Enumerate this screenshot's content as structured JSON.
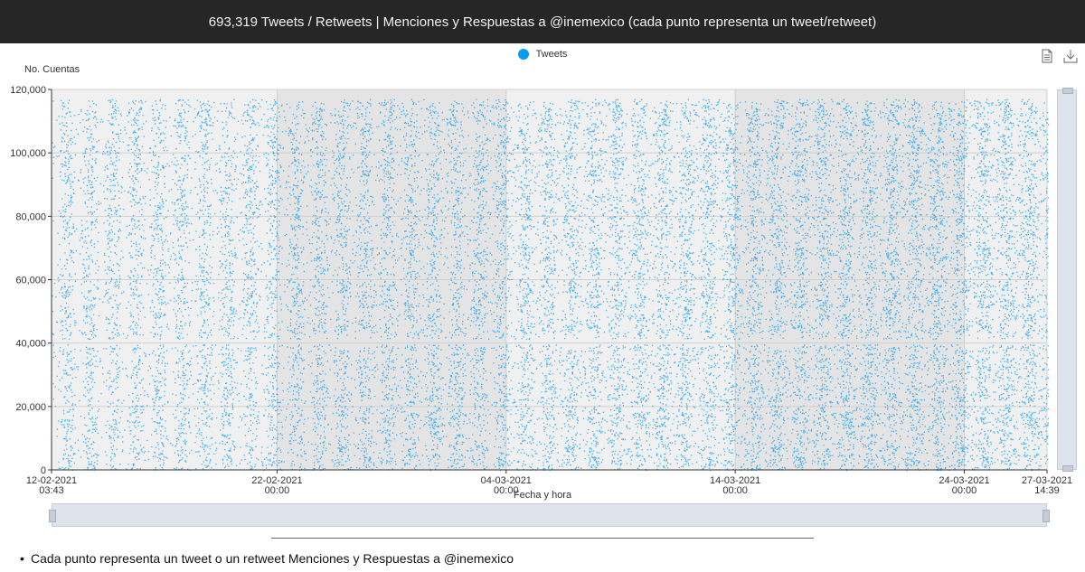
{
  "header": {
    "title": "693,319 Tweets / Retweets | Menciones y Respuestas a @inemexico (cada punto representa un tweet/retweet)"
  },
  "toolbox": {
    "data_view_icon": "document-icon",
    "download_icon": "download-icon"
  },
  "note": "Cada punto representa un tweet o un retweet Menciones y Respuestas a @inemexico",
  "chart_data": {
    "type": "scatter",
    "ylabel": "No. Cuentas",
    "xlabel": "Fecha y hora",
    "ylim": [
      0,
      120000
    ],
    "yticks": [
      0,
      20000,
      40000,
      60000,
      80000,
      100000,
      120000
    ],
    "ytick_labels": [
      "0",
      "20,000",
      "40,000",
      "60,000",
      "80,000",
      "100,000",
      "120,000"
    ],
    "xlim": [
      "2021-02-12 03:43",
      "2021-03-27 14:39"
    ],
    "xticks": [
      {
        "value": "2021-02-12 03:43",
        "date": "12-02-2021",
        "time": "03:43"
      },
      {
        "value": "2021-02-22 00:00",
        "date": "22-02-2021",
        "time": "00:00"
      },
      {
        "value": "2021-03-04 00:00",
        "date": "04-03-2021",
        "time": "00:00"
      },
      {
        "value": "2021-03-14 00:00",
        "date": "14-03-2021",
        "time": "00:00"
      },
      {
        "value": "2021-03-24 00:00",
        "date": "24-03-2021",
        "time": "00:00"
      },
      {
        "value": "2021-03-27 14:39",
        "date": "27-03-2021",
        "time": "14:39"
      }
    ],
    "grid": true,
    "legend_position": "top-center",
    "series": [
      {
        "name": "Tweets",
        "color": "#0a9bf2",
        "point_count": 693319,
        "y_max": 117000,
        "gap_band_y": 40500
      }
    ]
  }
}
